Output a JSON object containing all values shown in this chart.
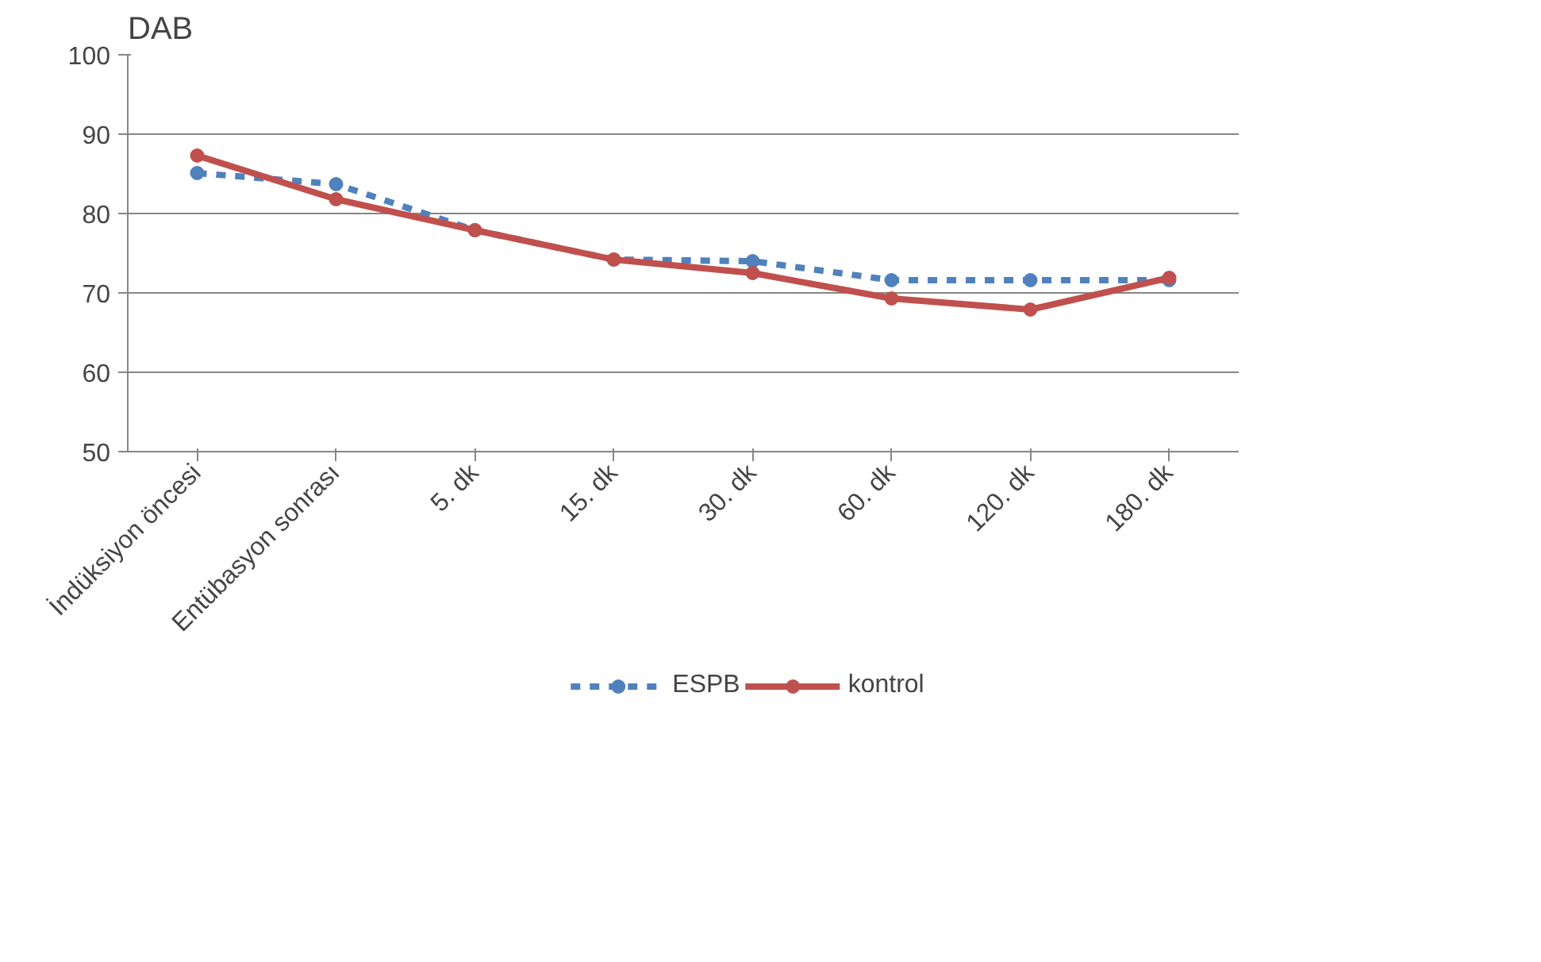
{
  "chart_data": {
    "type": "line",
    "ylabel": "DAB",
    "categories": [
      "İndüksiyon öncesi",
      "Entübasyon sonrası",
      "5. dk",
      "15. dk",
      "30. dk",
      "60. dk",
      "120. dk",
      "180. dk"
    ],
    "series": [
      {
        "name": "ESPB",
        "color": "#4f81bd",
        "line_style": "dashed",
        "values": [
          85.1,
          83.7,
          77.9,
          74.2,
          74.0,
          71.6,
          71.6,
          71.6
        ]
      },
      {
        "name": "kontrol",
        "color": "#c0504d",
        "line_style": "solid",
        "values": [
          87.3,
          81.8,
          77.9,
          74.2,
          72.5,
          69.3,
          67.9,
          71.9
        ]
      }
    ],
    "ylim": [
      50,
      100
    ],
    "yticks": [
      50,
      60,
      70,
      80,
      90,
      100
    ],
    "grid": "y",
    "legend": "bottom",
    "marker": "circle"
  }
}
